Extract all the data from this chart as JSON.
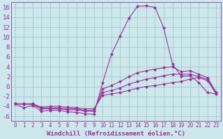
{
  "background_color": "#cce8ec",
  "grid_color": "#aacccc",
  "line_color": "#993399",
  "marker_color": "#993399",
  "xlabel": "Windchill (Refroidissement éolien,°C)",
  "xlabel_fontsize": 6.5,
  "ytick_fontsize": 6.5,
  "xtick_fontsize": 5.5,
  "xlim": [
    -0.5,
    23.5
  ],
  "ylim": [
    -7,
    17
  ],
  "yticks": [
    -6,
    -4,
    -2,
    0,
    2,
    4,
    6,
    8,
    10,
    12,
    14,
    16
  ],
  "xticks": [
    0,
    1,
    2,
    3,
    4,
    5,
    6,
    7,
    8,
    9,
    10,
    11,
    12,
    13,
    14,
    15,
    16,
    17,
    18,
    19,
    20,
    21,
    22,
    23
  ],
  "series": [
    {
      "x": [
        0,
        1,
        2,
        3,
        4,
        5,
        6,
        7,
        8,
        9,
        10,
        11,
        12,
        13,
        14,
        15,
        16,
        17,
        18,
        19,
        20,
        21,
        22,
        23
      ],
      "y": [
        -3.5,
        -4.3,
        -3.8,
        -5.0,
        -4.8,
        -4.8,
        -5.1,
        -5.2,
        -5.5,
        -5.6,
        0.8,
        6.5,
        10.2,
        13.8,
        16.2,
        16.3,
        16.0,
        11.8,
        4.5,
        2.1,
        2.2,
        0.8,
        -1.2,
        -1.5
      ]
    },
    {
      "x": [
        0,
        1,
        2,
        3,
        4,
        5,
        6,
        7,
        8,
        9,
        10,
        11,
        12,
        13,
        14,
        15,
        16,
        17,
        18,
        19,
        20,
        21,
        22,
        23
      ],
      "y": [
        -3.5,
        -3.6,
        -3.6,
        -4.5,
        -4.5,
        -4.5,
        -4.7,
        -4.7,
        -5.0,
        -5.0,
        -0.5,
        0.2,
        1.0,
        2.0,
        2.8,
        3.2,
        3.5,
        3.8,
        4.0,
        3.0,
        3.2,
        2.5,
        1.8,
        -1.2
      ]
    },
    {
      "x": [
        0,
        1,
        2,
        3,
        4,
        5,
        6,
        7,
        8,
        9,
        10,
        11,
        12,
        13,
        14,
        15,
        16,
        17,
        18,
        19,
        20,
        21,
        22,
        23
      ],
      "y": [
        -3.5,
        -3.5,
        -3.5,
        -4.3,
        -4.3,
        -4.3,
        -4.5,
        -4.5,
        -4.8,
        -4.8,
        -1.2,
        -0.8,
        -0.3,
        0.5,
        1.0,
        1.5,
        1.8,
        2.2,
        2.5,
        2.5,
        2.5,
        2.0,
        1.5,
        -1.2
      ]
    },
    {
      "x": [
        0,
        1,
        2,
        3,
        4,
        5,
        6,
        7,
        8,
        9,
        10,
        11,
        12,
        13,
        14,
        15,
        16,
        17,
        18,
        19,
        20,
        21,
        22,
        23
      ],
      "y": [
        -3.5,
        -3.5,
        -3.5,
        -4.2,
        -4.0,
        -4.0,
        -4.2,
        -4.3,
        -4.5,
        -4.5,
        -1.8,
        -1.5,
        -1.2,
        -0.8,
        -0.3,
        0.0,
        0.2,
        0.5,
        0.8,
        1.0,
        1.5,
        1.8,
        1.2,
        -1.5
      ]
    }
  ]
}
